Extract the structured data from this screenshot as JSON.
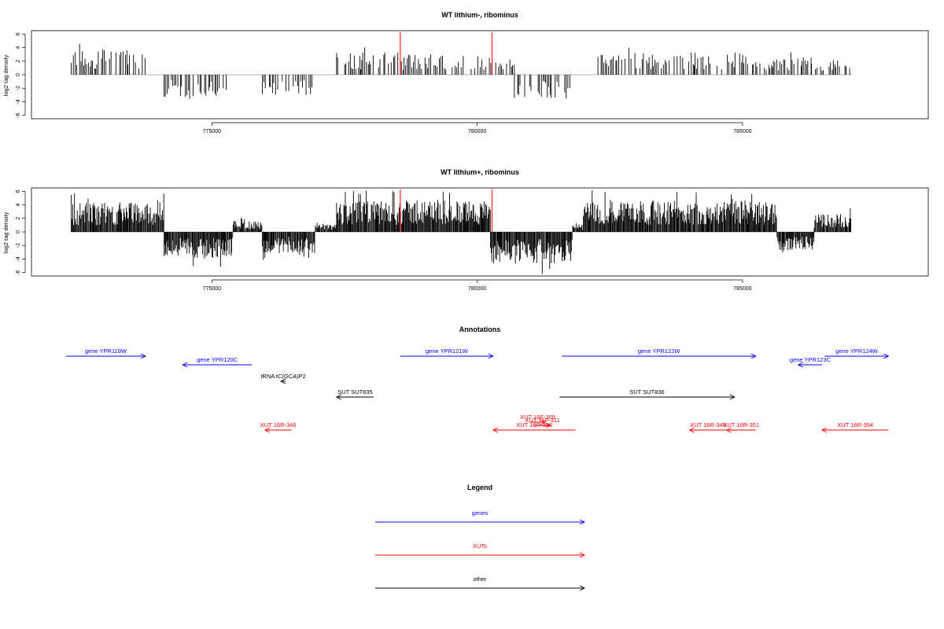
{
  "colors": {
    "gene": "#0000ff",
    "xut": "#ff0000",
    "other": "#000000",
    "highlight": "#ff2020",
    "bars": "#000000"
  },
  "chart_data": [
    {
      "type": "bar",
      "title": "WT lithium-, ribominus",
      "ylabel": "log2 tag density",
      "xlim": [
        771600,
        788500
      ],
      "ylim": [
        -6.5,
        6.5
      ],
      "xticks": [
        775000,
        780000,
        785000
      ],
      "yticks": [
        -6,
        -4,
        -2,
        0,
        2,
        4,
        6
      ],
      "highlight_x": [
        778550,
        780280
      ],
      "data_range": [
        772350,
        787050
      ],
      "density": "sparse",
      "segments": [
        [
          772350,
          773750,
          1,
          3.5
        ],
        [
          773750,
          774100,
          0,
          0
        ],
        [
          774100,
          775300,
          -1,
          3.0
        ],
        [
          775300,
          775950,
          0,
          0
        ],
        [
          775950,
          776900,
          -1,
          3.0
        ],
        [
          776900,
          777350,
          0,
          0
        ],
        [
          777350,
          778600,
          1,
          3.0
        ],
        [
          778600,
          780700,
          1,
          2.8
        ],
        [
          780700,
          781750,
          -1,
          3.2
        ],
        [
          781750,
          782250,
          0,
          0
        ],
        [
          782250,
          785250,
          1,
          3.0
        ],
        [
          785250,
          786300,
          1,
          2.5
        ],
        [
          786300,
          787050,
          1,
          2.2
        ]
      ]
    },
    {
      "type": "bar",
      "title": "WT lithium+, ribominus",
      "ylabel": "log2 tag density",
      "xlim": [
        771600,
        788500
      ],
      "ylim": [
        -6.5,
        6.5
      ],
      "xticks": [
        775000,
        780000,
        785000
      ],
      "yticks": [
        -6,
        -4,
        -2,
        0,
        2,
        4,
        6
      ],
      "highlight_x": [
        778550,
        780280
      ],
      "data_range": [
        772350,
        787050
      ],
      "density": "dense",
      "segments": [
        [
          772350,
          774100,
          1,
          4.0
        ],
        [
          774100,
          775400,
          -1,
          3.5
        ],
        [
          775400,
          775950,
          1,
          1.5
        ],
        [
          775950,
          776950,
          -1,
          2.8
        ],
        [
          776950,
          777350,
          1,
          1.0
        ],
        [
          777350,
          780250,
          1,
          4.2
        ],
        [
          780250,
          781800,
          -1,
          4.2
        ],
        [
          781800,
          782000,
          1,
          1.0
        ],
        [
          782000,
          785650,
          1,
          4.2
        ],
        [
          785650,
          786350,
          -1,
          2.5
        ],
        [
          786350,
          787050,
          1,
          2.5
        ]
      ]
    }
  ],
  "annotations": {
    "title": "Annotations",
    "items": [
      {
        "label": "gene YPR119W",
        "type": "gene",
        "start": 772250,
        "end": 773750,
        "strand": "+",
        "row": 0
      },
      {
        "label": "gene YPR120C",
        "type": "gene",
        "start": 774450,
        "end": 775750,
        "strand": "-",
        "row": 1
      },
      {
        "label": "gene YPR121W",
        "type": "gene",
        "start": 778550,
        "end": 780300,
        "strand": "+",
        "row": 0
      },
      {
        "label": "gene YPR122W",
        "type": "gene",
        "start": 781600,
        "end": 785250,
        "strand": "+",
        "row": 0
      },
      {
        "label": "gene YPR123C",
        "type": "gene",
        "start": 786050,
        "end": 786500,
        "strand": "-",
        "row": 1
      },
      {
        "label": "gene YPR124W",
        "type": "gene",
        "start": 786550,
        "end": 787750,
        "strand": "+",
        "row": 0
      },
      {
        "label": "tRNA tC(GCA)P2",
        "type": "other",
        "start": 776300,
        "end": 776390,
        "strand": "-",
        "row": 2
      },
      {
        "label": "SUT SUT835",
        "type": "other",
        "start": 777350,
        "end": 778050,
        "strand": "-",
        "row": 3
      },
      {
        "label": "SUT SUT836",
        "type": "other",
        "start": 781550,
        "end": 784850,
        "strand": "+",
        "row": 3
      },
      {
        "label": "XUT 16F-309",
        "type": "xut",
        "start": 781000,
        "end": 781280,
        "strand": "+",
        "row": 4
      },
      {
        "label": "XUT 16F-311",
        "type": "xut",
        "start": 781080,
        "end": 781380,
        "strand": "+",
        "row": 5
      },
      {
        "label": "XUT 16R-346",
        "type": "xut",
        "start": 776000,
        "end": 776500,
        "strand": "-",
        "row": 6
      },
      {
        "label": "XUT 16R-348",
        "type": "xut",
        "start": 780300,
        "end": 781850,
        "strand": "-",
        "row": 6
      },
      {
        "label": "XUT 16R-349",
        "type": "xut",
        "start": 784000,
        "end": 784700,
        "strand": "-",
        "row": 6
      },
      {
        "label": "XUT 16R-351",
        "type": "xut",
        "start": 784700,
        "end": 785250,
        "strand": "-",
        "row": 6
      },
      {
        "label": "XUT 16R-354",
        "type": "xut",
        "start": 786500,
        "end": 787750,
        "strand": "-",
        "row": 6
      }
    ]
  },
  "legend": {
    "title": "Legend",
    "items": [
      {
        "label": "genes",
        "type": "gene"
      },
      {
        "label": "XUTs",
        "type": "xut"
      },
      {
        "label": "other",
        "type": "other"
      }
    ]
  }
}
